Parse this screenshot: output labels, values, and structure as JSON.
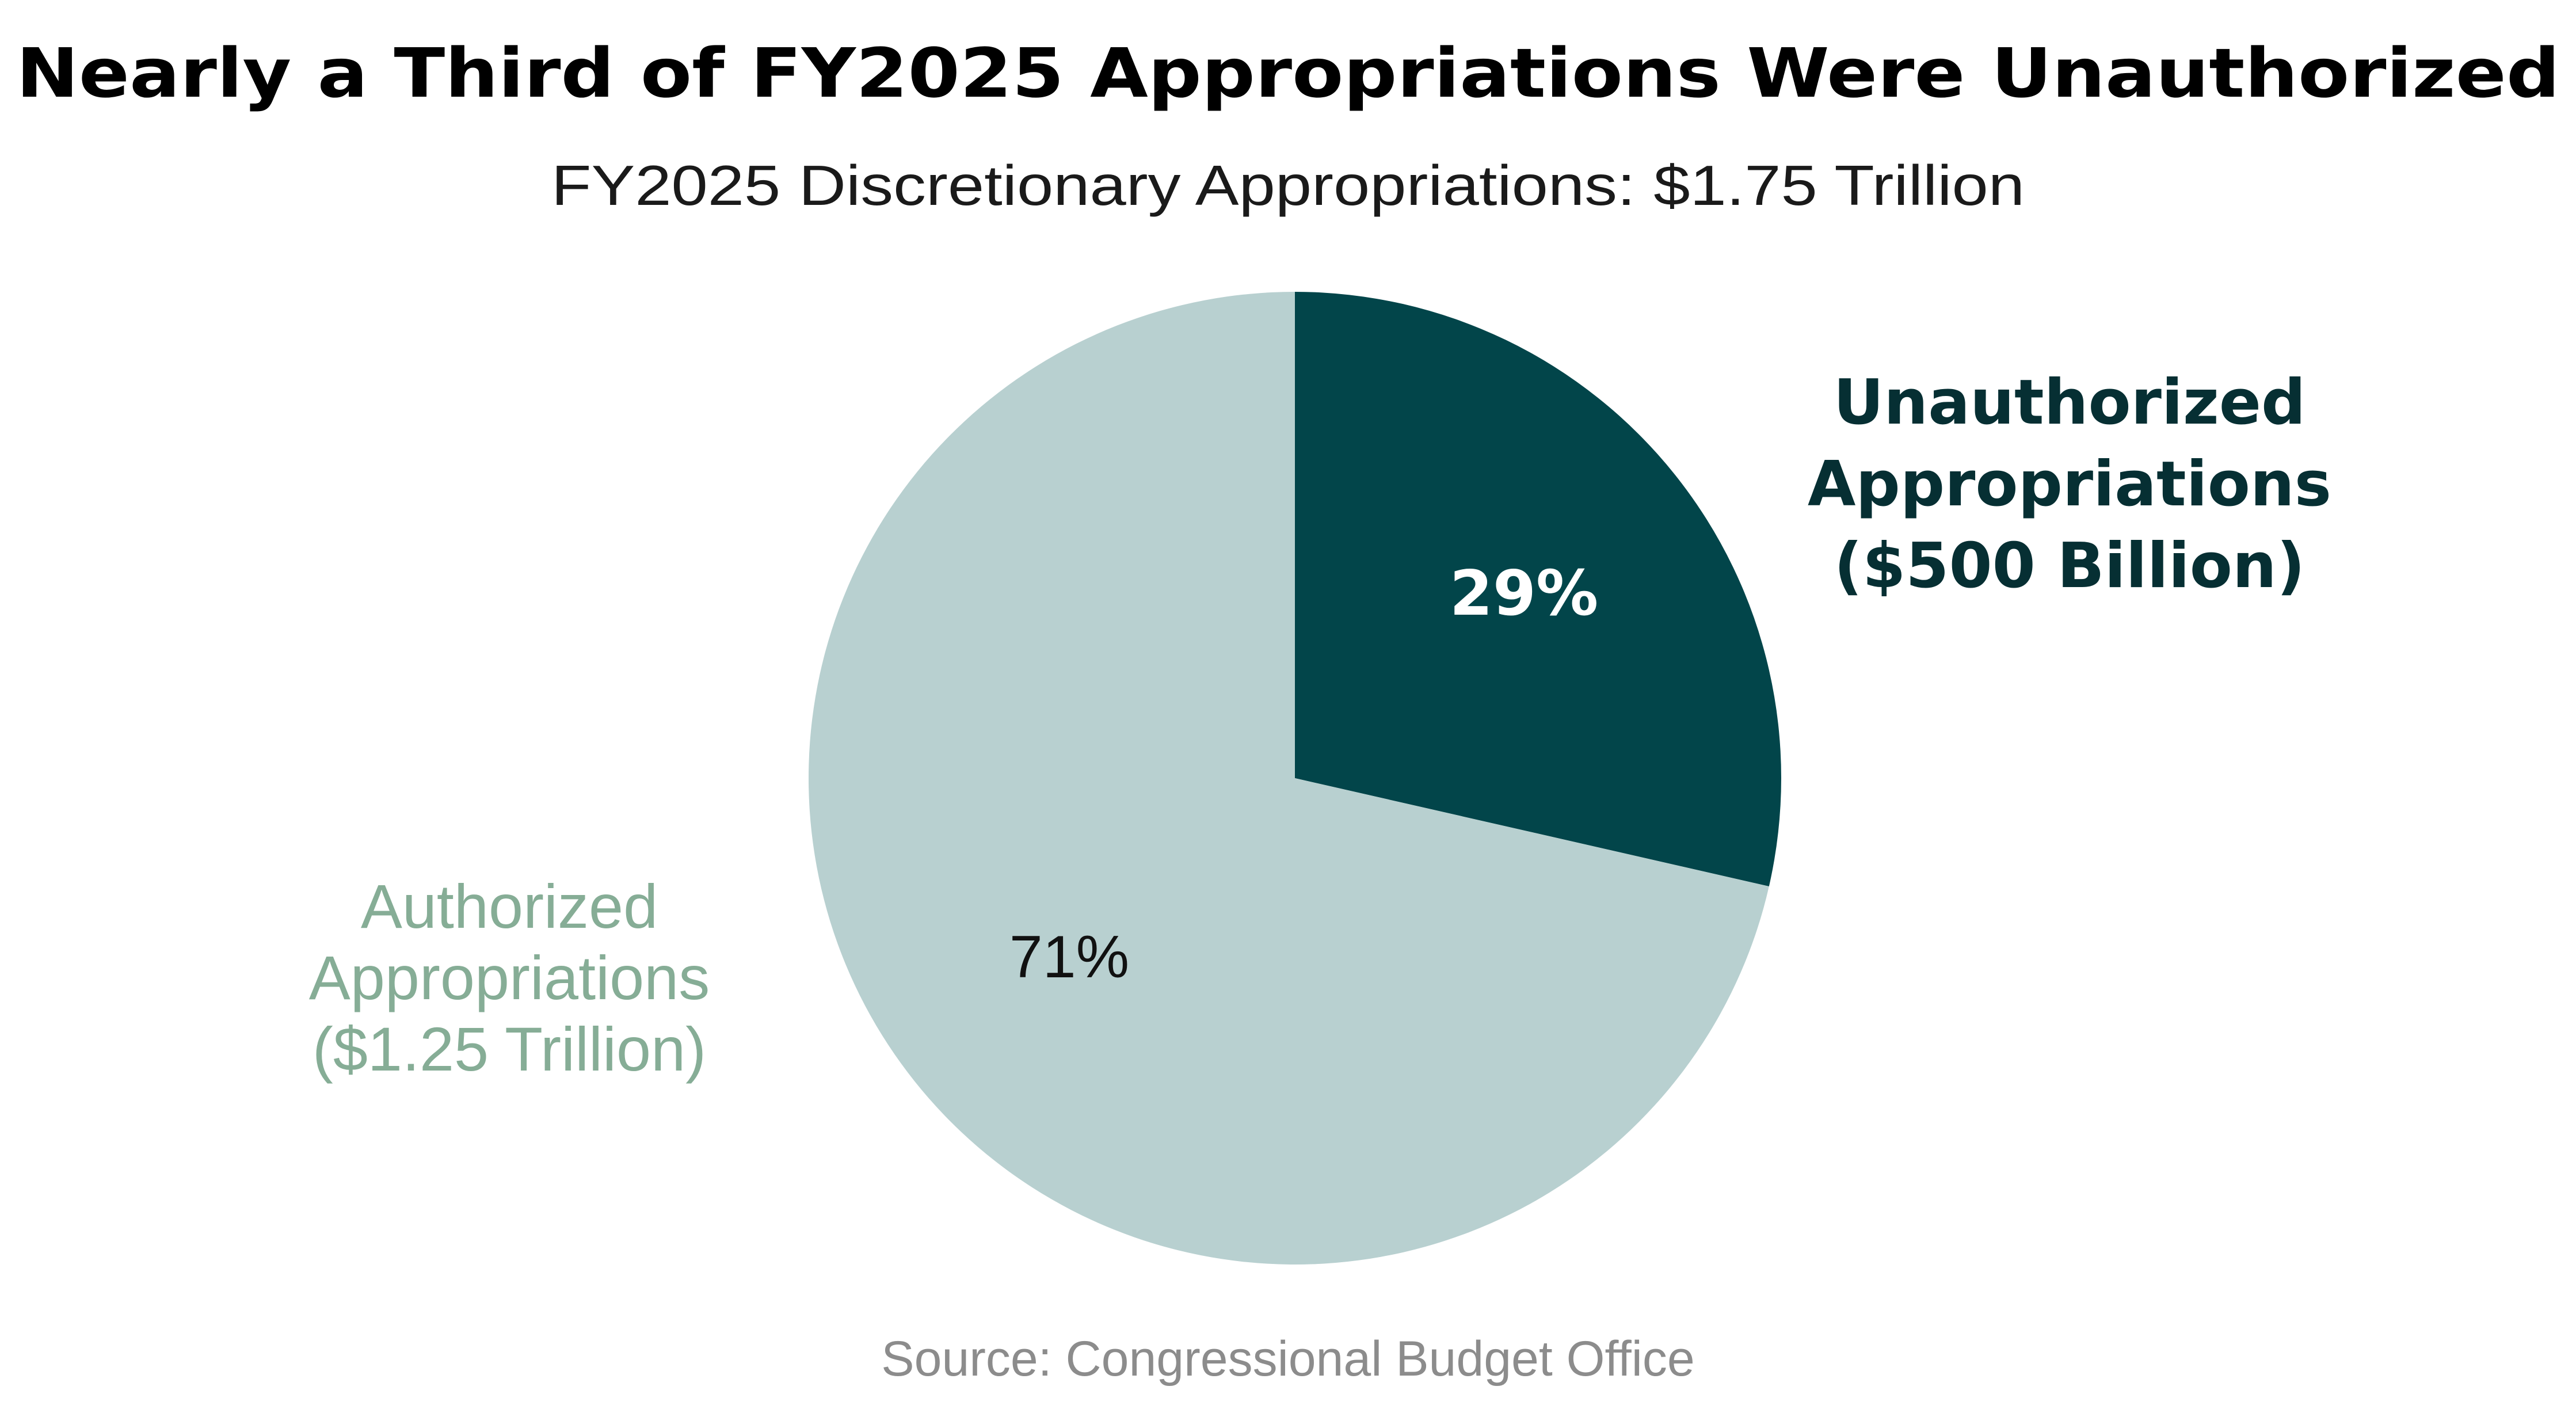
{
  "chart_data": {
    "type": "pie",
    "title": "Nearly a Third of FY2025 Appropriations Were Unauthorized",
    "subtitle": "FY2025 Discretionary Appropriations: $1.75 Trillion",
    "slices": [
      {
        "name": "Unauthorized Appropriations",
        "label_lines": [
          "Unauthorized",
          "Appropriations",
          "($500 Billion)"
        ],
        "amount_billions": 500,
        "percent": 29,
        "percent_label": "29%",
        "color": "#02454A",
        "label_color": "#062F33",
        "percent_color": "#FFFFFF"
      },
      {
        "name": "Authorized Appropriations",
        "label_lines": [
          "Authorized",
          "Appropriations",
          "($1.25 Trillion)"
        ],
        "amount_billions": 1250,
        "percent": 71,
        "percent_label": "71%",
        "color": "#B8D0D0",
        "label_color": "#86AD96",
        "percent_color": "#111111"
      }
    ],
    "source": "Source: Congressional Budget Office"
  }
}
